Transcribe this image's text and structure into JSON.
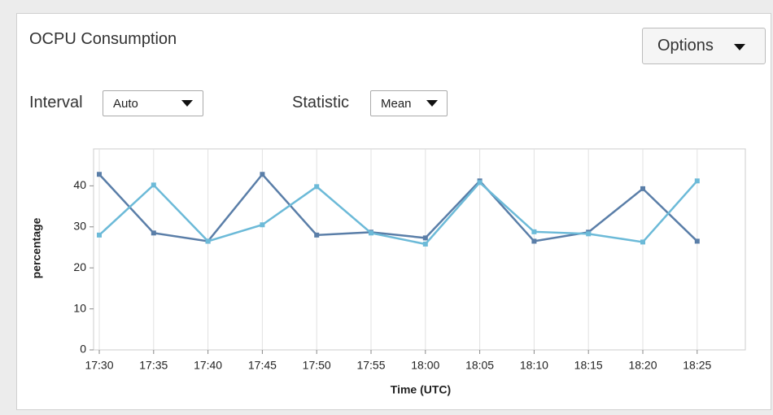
{
  "header": {
    "title": "OCPU Consumption"
  },
  "options_button": {
    "label": "Options"
  },
  "controls": [
    {
      "label": "Interval",
      "value": "Auto"
    },
    {
      "label": "Statistic",
      "value": "Mean"
    }
  ],
  "chart_data": {
    "type": "line",
    "xlabel": "Time (UTC)",
    "ylabel": "percentage",
    "categories": [
      "17:30",
      "17:35",
      "17:40",
      "17:45",
      "17:50",
      "17:55",
      "18:00",
      "18:05",
      "18:10",
      "18:15",
      "18:20",
      "18:25"
    ],
    "ylim": [
      0,
      49
    ],
    "yticks": [
      0,
      10,
      20,
      30,
      40
    ],
    "xgrid": true,
    "ygrid": false,
    "series": [
      {
        "color": "#5a7ea8",
        "values": [
          42.8,
          28.5,
          26.5,
          42.8,
          28,
          28.7,
          27.3,
          41.2,
          26.5,
          28.7,
          39.3,
          26.5
        ]
      },
      {
        "color": "#6cbad8",
        "values": [
          28,
          40.2,
          26.5,
          30.5,
          39.8,
          28.5,
          25.8,
          40.8,
          28.8,
          28.3,
          26.3,
          41.2
        ]
      }
    ]
  }
}
